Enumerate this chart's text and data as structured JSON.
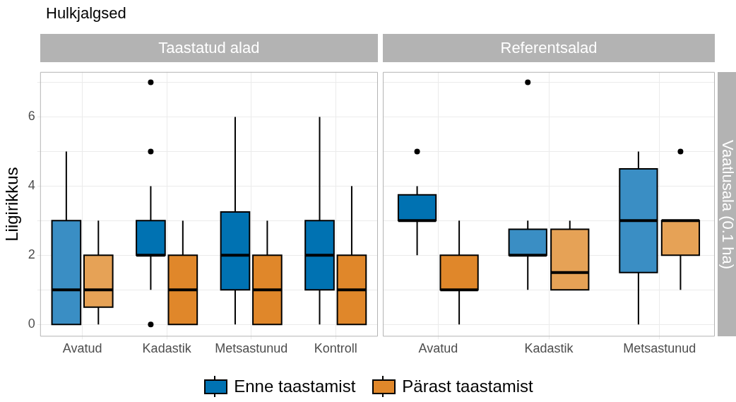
{
  "chart_data": [
    {
      "type": "box",
      "title": "Hulkjalgsed",
      "subtitle": "Taastatud alad",
      "ylabel": "Liigirikkus",
      "categories": [
        "Avatud",
        "Kadastik",
        "Metsastunud",
        "Kontroll"
      ],
      "ylim": [
        -0.35,
        7.3
      ],
      "yticks": [
        0,
        {
          "value": 1,
          "label": null
        },
        2,
        {
          "value": 3,
          "label": null
        },
        4,
        {
          "value": 5,
          "label": null
        },
        6,
        {
          "value": 7,
          "label": null
        }
      ],
      "grid": true,
      "legend": "bottom",
      "series": [
        {
          "name": "Enne taastamist",
          "color": "#0072b2",
          "colors": [
            "#3a8ec4",
            "#0072b2",
            "#0072b2",
            "#0072b2"
          ],
          "boxes": [
            {
              "low": 0,
              "q1": 0,
              "median": 1,
              "q3": 3,
              "high": 5
            },
            {
              "low": 1,
              "q1": 2,
              "median": 2,
              "q3": 3,
              "high": 4,
              "outliers": [
                7,
                5,
                0
              ]
            },
            {
              "low": 0,
              "q1": 1,
              "median": 2,
              "q3": 3.25,
              "high": 6
            },
            {
              "low": 0,
              "q1": 1,
              "median": 2,
              "q3": 3,
              "high": 6
            }
          ]
        },
        {
          "name": "Pärast taastamist",
          "color": "#e0872a",
          "colors": [
            "#e6a256",
            "#e0872a",
            "#e0872a",
            "#e0872a"
          ],
          "boxes": [
            {
              "low": 0,
              "q1": 0.5,
              "median": 1,
              "q3": 2,
              "high": 3
            },
            {
              "low": 0,
              "q1": 0,
              "median": 1,
              "q3": 2,
              "high": 3
            },
            {
              "low": 0,
              "q1": 0,
              "median": 1,
              "q3": 2,
              "high": 3
            },
            {
              "low": 0,
              "q1": 0,
              "median": 1,
              "q3": 2,
              "high": 4
            }
          ]
        }
      ]
    },
    {
      "type": "box",
      "subtitle": "Referentsalad",
      "annotations": [
        "Vaatlusala (0.1 ha)"
      ],
      "categories": [
        "Avatud",
        "Kadastik",
        "Metsastunud"
      ],
      "ylim": [
        -0.35,
        7.3
      ],
      "yticks": [
        0,
        {
          "value": 1,
          "label": null
        },
        2,
        {
          "value": 3,
          "label": null
        },
        4,
        {
          "value": 5,
          "label": null
        },
        6,
        {
          "value": 7,
          "label": null
        }
      ],
      "grid": true,
      "tick_labels": "x",
      "series": [
        {
          "colors": [
            "#0072b2",
            "#3a8ec4",
            "#3a8ec4"
          ],
          "boxes": [
            {
              "low": 2,
              "q1": 3,
              "median": 3,
              "q3": 3.75,
              "high": 4,
              "outliers": [
                5
              ]
            },
            {
              "low": 1,
              "q1": 2,
              "median": 2,
              "q3": 2.75,
              "high": 3,
              "outliers": [
                7
              ]
            },
            {
              "low": 0,
              "q1": 1.5,
              "median": 3,
              "q3": 4.5,
              "high": 5
            }
          ]
        },
        {
          "colors": [
            "#e0872a",
            "#e6a256",
            "#e6a256"
          ],
          "boxes": [
            {
              "low": 0,
              "q1": 1,
              "median": 1,
              "q3": 2,
              "high": 3
            },
            {
              "low": 1,
              "q1": 1,
              "median": 1.5,
              "q3": 2.75,
              "high": 3
            },
            {
              "low": 1,
              "q1": 2,
              "median": 3,
              "q3": 3,
              "high": 3,
              "outliers": [
                5
              ]
            }
          ]
        }
      ]
    }
  ]
}
